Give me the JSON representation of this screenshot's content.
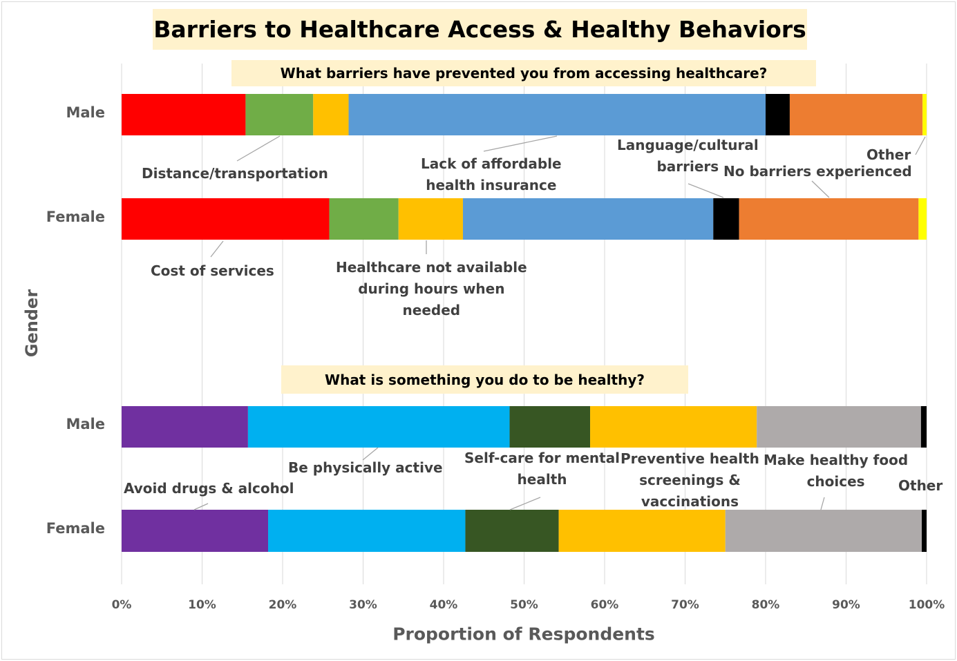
{
  "chart_data": [
    {
      "type": "bar",
      "orientation": "horizontal",
      "stacked": "100%",
      "title": "Barriers to Healthcare Access & Healthy Behaviors",
      "subtitle": "What barriers have prevented you from accessing healthcare?",
      "xlabel": "Proportion of Respondents",
      "ylabel": "Gender",
      "xlim": [
        0,
        100
      ],
      "x_ticks": [
        "0%",
        "10%",
        "20%",
        "30%",
        "40%",
        "50%",
        "60%",
        "70%",
        "80%",
        "90%",
        "100%"
      ],
      "grid": "vertical",
      "categories": [
        "Male",
        "Female"
      ],
      "series": [
        {
          "name": "Cost of services",
          "color": "#ff0000",
          "values": [
            15.4,
            25.8
          ]
        },
        {
          "name": "Distance/transportation",
          "color": "#70ad47",
          "values": [
            8.4,
            8.6
          ]
        },
        {
          "name": "Healthcare not available during hours when needed",
          "color": "#ffc000",
          "values": [
            4.4,
            8.0
          ]
        },
        {
          "name": "Lack of affordable health insurance",
          "color": "#5b9bd5",
          "values": [
            51.8,
            31.1
          ]
        },
        {
          "name": "Language/cultural barriers",
          "color": "#000000",
          "values": [
            3.0,
            3.2
          ]
        },
        {
          "name": "No barriers experienced",
          "color": "#ed7d31",
          "values": [
            16.5,
            22.3
          ]
        },
        {
          "name": "Other",
          "color": "#ffff00",
          "values": [
            0.5,
            1.0
          ]
        }
      ]
    },
    {
      "type": "bar",
      "orientation": "horizontal",
      "stacked": "100%",
      "subtitle": "What is something you do to be healthy?",
      "xlabel": "Proportion of Respondents",
      "ylabel": "Gender",
      "xlim": [
        0,
        100
      ],
      "categories": [
        "Male",
        "Female"
      ],
      "series": [
        {
          "name": "Avoid drugs & alcohol",
          "color": "#7030a0",
          "values": [
            15.7,
            18.2
          ]
        },
        {
          "name": "Be physically active",
          "color": "#00b0f0",
          "values": [
            32.5,
            24.5
          ]
        },
        {
          "name": "Self-care for mental health",
          "color": "#375623",
          "values": [
            10.0,
            11.6
          ]
        },
        {
          "name": "Preventive health screenings & vaccinations",
          "color": "#ffc000",
          "values": [
            20.7,
            20.7
          ]
        },
        {
          "name": "Make healthy food choices",
          "color": "#aeaaaa",
          "values": [
            20.4,
            24.4
          ]
        },
        {
          "name": "Other",
          "color": "#000000",
          "values": [
            0.7,
            0.6
          ]
        }
      ]
    }
  ],
  "annotations": {
    "cost": "Cost of services",
    "distance": "Distance/transportation",
    "hours": "Healthcare not available\nduring hours when\nneeded",
    "insurance": "Lack of affordable\nhealth insurance",
    "language": "Language/cultural\nbarriers",
    "no_barriers": "No barriers experienced",
    "other1": "Other",
    "drugs": "Avoid drugs & alcohol",
    "active": "Be physically active",
    "mental": "Self-care for mental\nhealth",
    "preventive": "Preventive health\nscreenings &\nvaccinations",
    "food": "Make healthy food\nchoices",
    "other2": "Other"
  }
}
